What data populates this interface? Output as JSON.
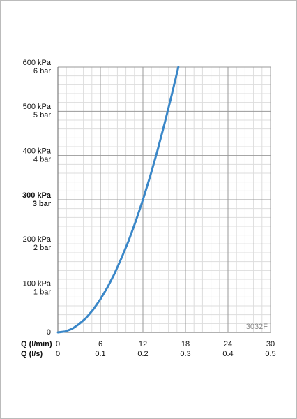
{
  "chart_data": {
    "type": "line",
    "x": [
      0,
      1,
      2,
      3,
      4,
      5,
      6,
      7,
      8,
      9,
      10,
      11,
      12,
      13,
      14,
      15,
      16,
      17
    ],
    "series": [
      {
        "name": "3032F",
        "color": "#3a87c8",
        "values": [
          0,
          2,
          8,
          19,
          33,
          52,
          75,
          102,
          133,
          169,
          208,
          252,
          300,
          352,
          408,
          469,
          533,
          600
        ]
      }
    ],
    "xlabel": "Q (l/min)",
    "x2label": "Q (l/s)",
    "xlim": [
      0,
      30
    ],
    "xticks": [
      0,
      6,
      12,
      18,
      24,
      30
    ],
    "x2lim": [
      0,
      0.5
    ],
    "x2ticks": [
      0,
      0.1,
      0.2,
      0.3,
      0.4,
      0.5
    ],
    "ylim": [
      0,
      600
    ],
    "yticks": [
      0,
      {
        "value": 100,
        "label": "100 kPa"
      },
      {
        "value": 200,
        "label": "200 kPa"
      },
      {
        "value": 300,
        "label": "300 kPa"
      },
      {
        "value": 400,
        "label": "400 kPa"
      },
      {
        "value": 500,
        "label": "500 kPa"
      },
      {
        "value": 600,
        "label": "600 kPa"
      }
    ],
    "y2lim": [
      0,
      6
    ],
    "y2ticks": [
      {
        "value": 1,
        "label": "1 bar"
      },
      {
        "value": 2,
        "label": "2 bar"
      },
      {
        "value": 3,
        "label": "3 bar"
      },
      {
        "value": 4,
        "label": "4 bar"
      },
      {
        "value": 5,
        "label": "5 bar"
      },
      {
        "value": 6,
        "label": "6 bar"
      }
    ],
    "bold_tick": 3,
    "minor_divisions": 5,
    "grid": true
  }
}
